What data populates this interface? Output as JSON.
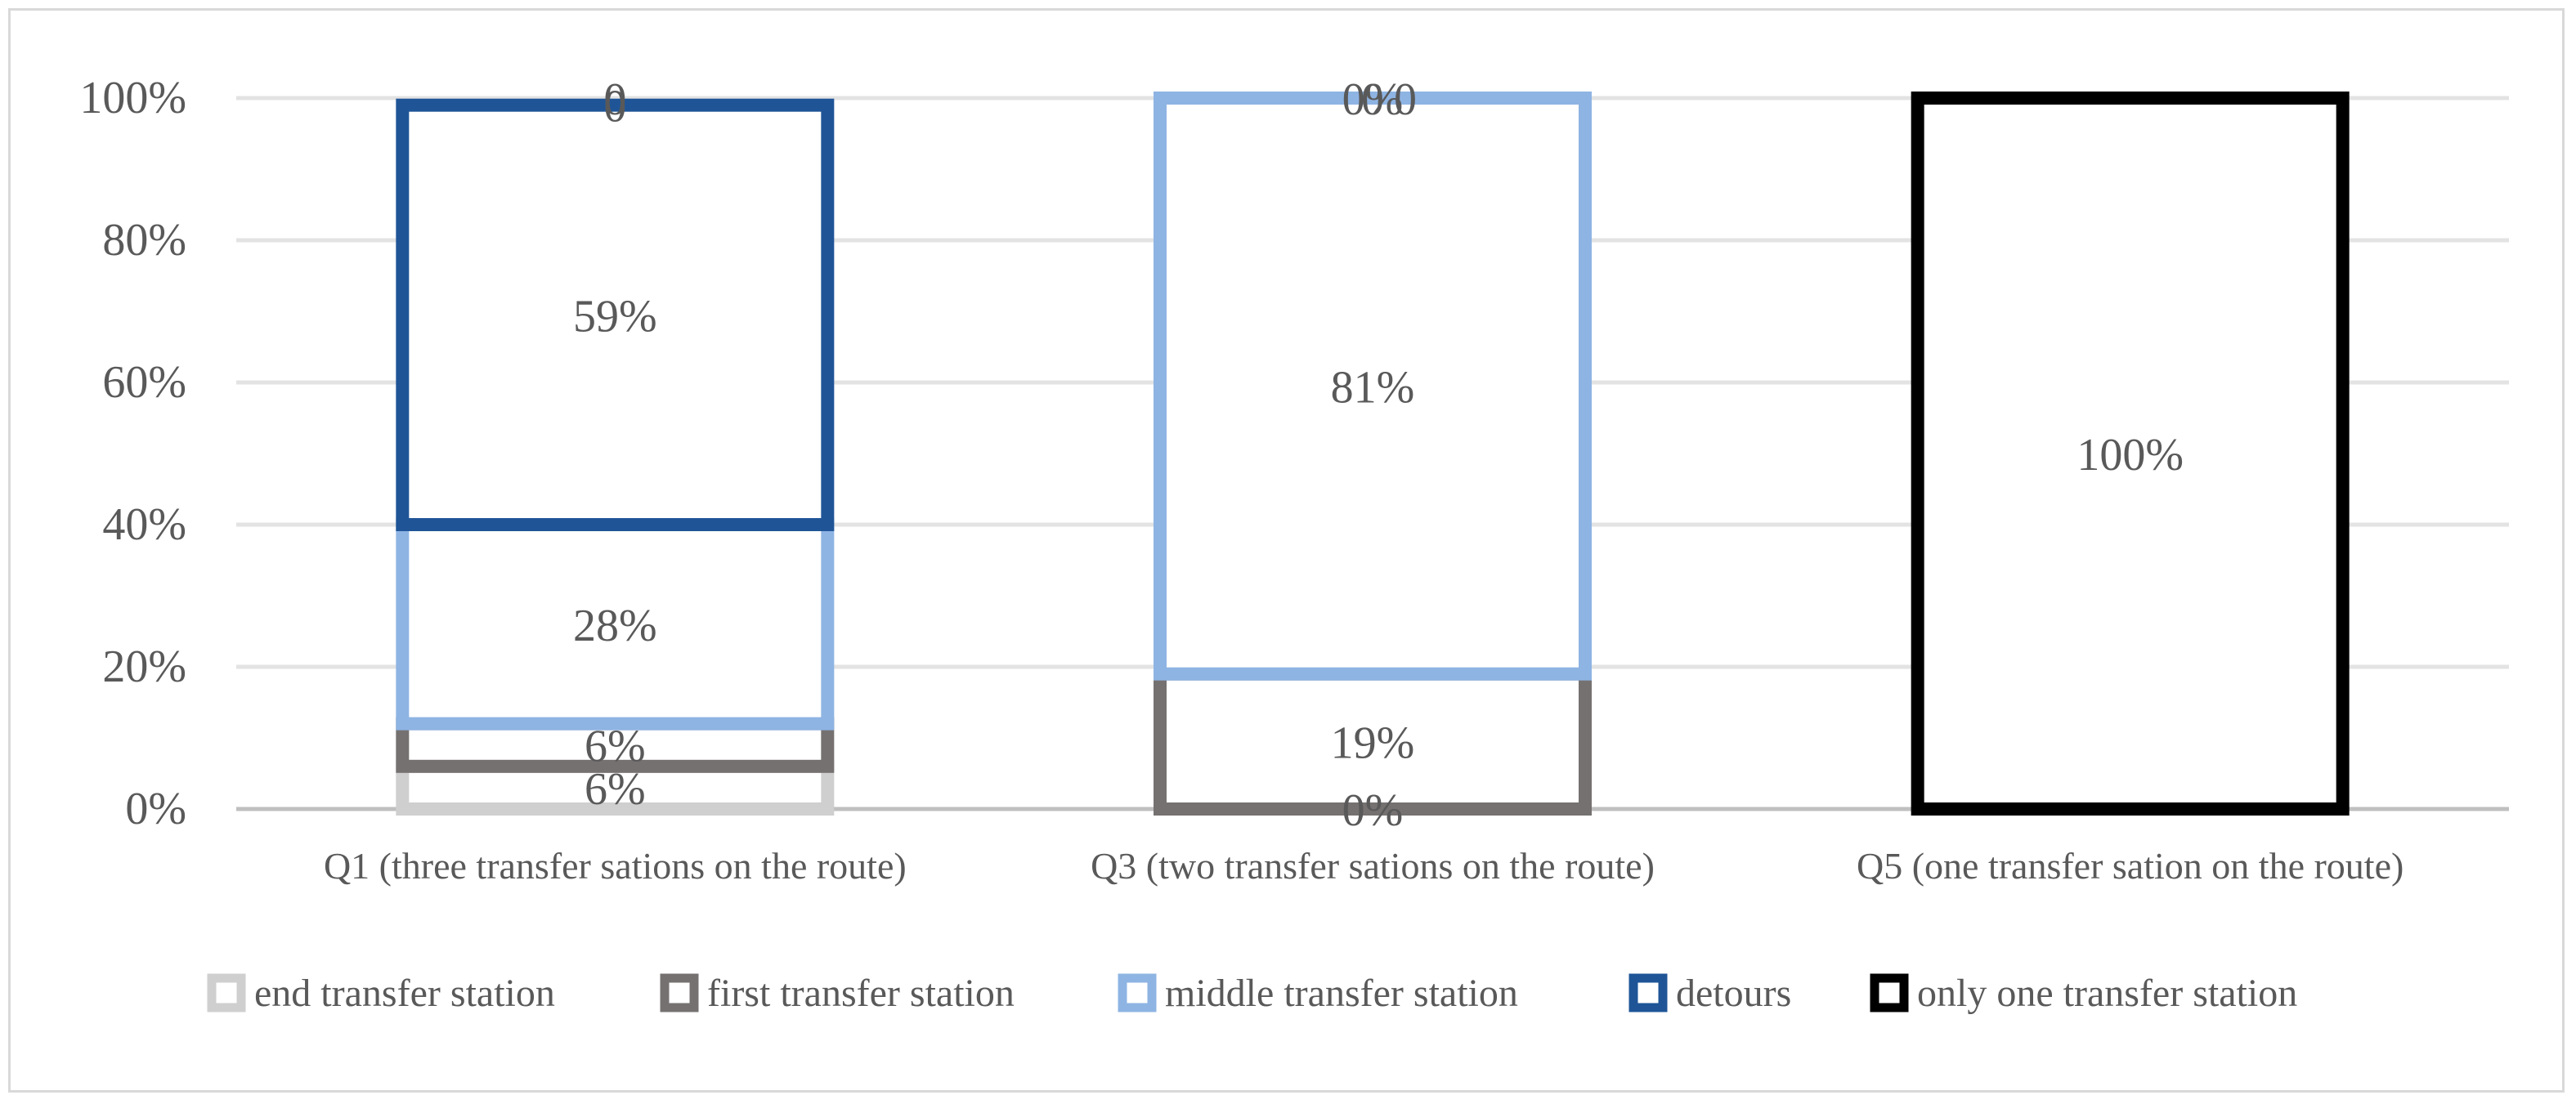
{
  "chart_data": {
    "type": "bar",
    "stacked": "percent",
    "grid": true,
    "legend_position": "bottom",
    "categories": [
      "Q1 (three transfer sations on the route)",
      "Q3 (two transfer sations on the route)",
      "Q5  (one transfer sation on the route)"
    ],
    "y_ticks": [
      "0%",
      "20%",
      "40%",
      "60%",
      "80%",
      "100%"
    ],
    "ylim": [
      0,
      100
    ],
    "series": [
      {
        "name": "end transfer station",
        "color": "#cfcfcf",
        "values": [
          6,
          0,
          null
        ],
        "labels": [
          "6%",
          "0%",
          ""
        ]
      },
      {
        "name": "first transfer station",
        "color": "#767171",
        "values": [
          6,
          19,
          null
        ],
        "labels": [
          "6%",
          "19%",
          ""
        ]
      },
      {
        "name": "middle transfer station",
        "color": "#8eb4e3",
        "values": [
          28,
          81,
          null
        ],
        "labels": [
          "28%",
          "81%",
          ""
        ]
      },
      {
        "name": "detours",
        "color": "#1f5597",
        "values": [
          59,
          0,
          null
        ],
        "labels": [
          "59%",
          "0%",
          ""
        ]
      },
      {
        "name": "only one transfer station",
        "color": "#000000",
        "values": [
          0,
          0,
          100
        ],
        "labels": [
          "0",
          "0",
          "100%"
        ]
      }
    ],
    "extra_labels": [
      "0",
      "0"
    ]
  }
}
